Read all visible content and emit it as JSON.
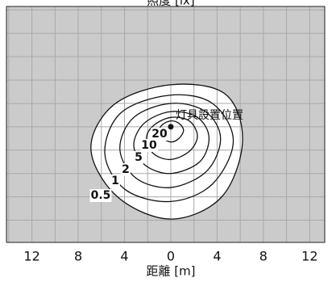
{
  "chart_data": {
    "type": "contour",
    "title": "照度 [lx]",
    "xlabel": "距離 [m]",
    "xlim": [
      -14.2,
      13.3
    ],
    "ylim": [
      -9.9,
      10.3
    ],
    "xticks": [
      {
        "value": -12,
        "label": "12"
      },
      {
        "value": -8,
        "label": "8"
      },
      {
        "value": -4,
        "label": "4"
      },
      0,
      4,
      8,
      12
    ],
    "grid": true,
    "contours": [
      {
        "level": 0.5,
        "x": [
          0,
          4.7,
          6.2,
          4.4,
          0,
          -4.6,
          -6.9,
          -4.9
        ],
        "y": [
          3.6,
          2.8,
          -1.2,
          -6.0,
          -7.9,
          -6.0,
          -1.9,
          1.9
        ]
      },
      {
        "level": 1,
        "x": [
          -0.1,
          3.6,
          5.4,
          3.6,
          0,
          -3.9,
          -5.7,
          -4.3
        ],
        "y": [
          2.7,
          2.0,
          -1.2,
          -4.9,
          -6.4,
          -5.4,
          -2.3,
          1.2
        ]
      },
      {
        "level": 2,
        "x": [
          0,
          3.0,
          4.3,
          3.1,
          0,
          -3.0,
          -4.4,
          -3.2
        ],
        "y": [
          2.0,
          1.3,
          -1.0,
          -3.8,
          -5.2,
          -4.4,
          -1.9,
          0.8
        ]
      },
      {
        "level": 5,
        "x": [
          0,
          2.3,
          3.3,
          2.5,
          0,
          -2.2,
          -3.2,
          -2.3
        ],
        "y": [
          1.3,
          0.8,
          -0.9,
          -3.0,
          -4.0,
          -3.3,
          -1.6,
          0.3
        ]
      },
      {
        "level": 10,
        "x": [
          0,
          1.6,
          2.3,
          1.6,
          0,
          -1.5,
          -2.1,
          -1.5
        ],
        "y": [
          0.8,
          0.5,
          -0.8,
          -2.1,
          -2.8,
          -2.3,
          -1.0,
          0.1
        ]
      },
      {
        "level": 20,
        "x": [
          0,
          0.7,
          1.1,
          0.7,
          0,
          -0.8,
          -1.0,
          -0.7
        ],
        "y": [
          0.5,
          0.3,
          -0.3,
          -1.0,
          -1.3,
          -0.9,
          -0.3,
          0.2
        ]
      }
    ],
    "source": {
      "x": 0,
      "y": 0,
      "label": "灯具設置位置"
    }
  }
}
